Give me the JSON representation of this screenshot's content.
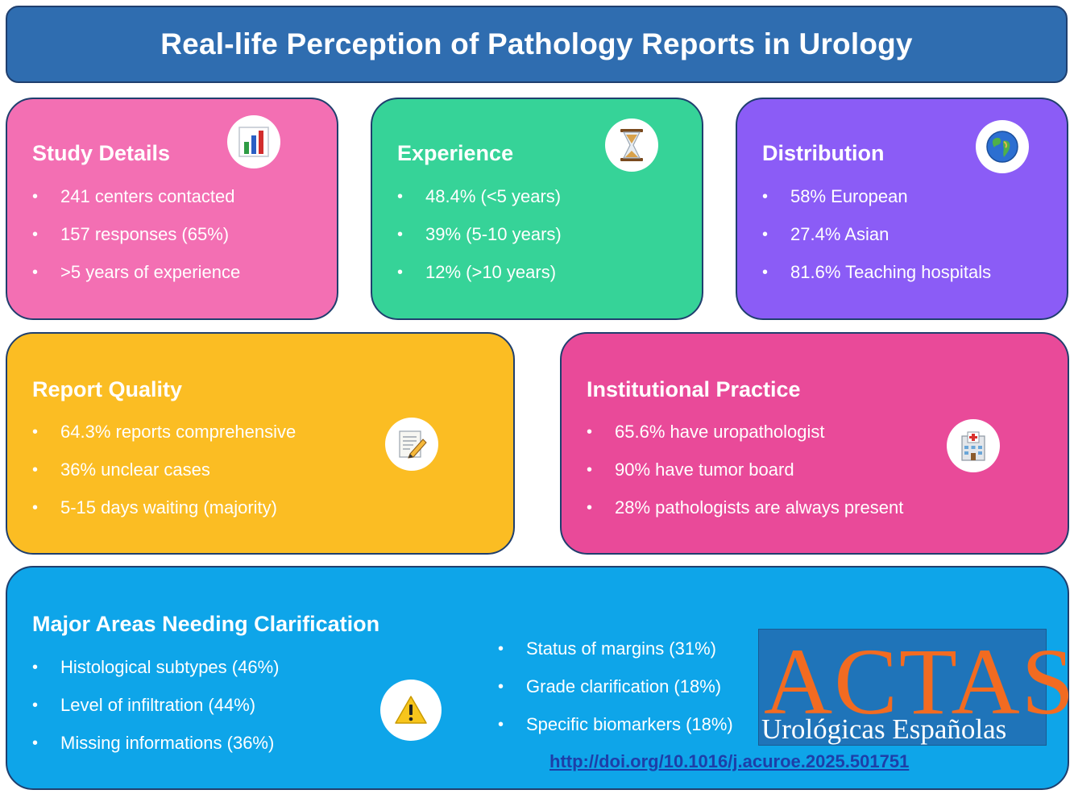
{
  "title": "Real-life Perception of Pathology Reports in Urology",
  "cards": {
    "study": {
      "title": "Study Details",
      "icon": "bar-chart-icon",
      "items": [
        "241 centers contacted",
        "157 responses (65%)",
        ">5 years of experience"
      ]
    },
    "experience": {
      "title": "Experience",
      "icon": "hourglass-icon",
      "items": [
        "48.4% (<5 years)",
        "39% (5-10 years)",
        "12% (>10 years)"
      ]
    },
    "distribution": {
      "title": "Distribution",
      "icon": "globe-icon",
      "items": [
        "58% European",
        "27.4% Asian",
        "81.6% Teaching hospitals"
      ]
    },
    "report": {
      "title": "Report Quality",
      "icon": "memo-icon",
      "items": [
        "64.3% reports comprehensive",
        "36% unclear cases",
        "5-15 days waiting (majority)"
      ]
    },
    "institutional": {
      "title": "Institutional Practice",
      "icon": "hospital-icon",
      "items": [
        "65.6% have uropathologist",
        "90% have tumor board",
        "28% pathologists are always present"
      ]
    },
    "major": {
      "title": "Major Areas Needing Clarification",
      "icon": "warning-icon",
      "items_left": [
        "Histological subtypes (46%)",
        "Level of infiltration (44%)",
        "Missing informations (36%)"
      ],
      "items_right": [
        "Status of margins (31%)",
        "Grade clarification (18%)",
        "Specific biomarkers (18%)"
      ]
    }
  },
  "logo": {
    "name": "ACTAS",
    "subtitle": "Urológicas Españolas"
  },
  "doi": "http://doi.org/10.1016/j.acuroe.2025.501751",
  "colors": {
    "header": "#2f6db0",
    "study": "#f36fb3",
    "experience": "#36d398",
    "distribution": "#8b5cf6",
    "report": "#fbbd23",
    "institutional": "#e94a99",
    "major": "#0ea5e9",
    "logo_orange": "#f26b21"
  }
}
